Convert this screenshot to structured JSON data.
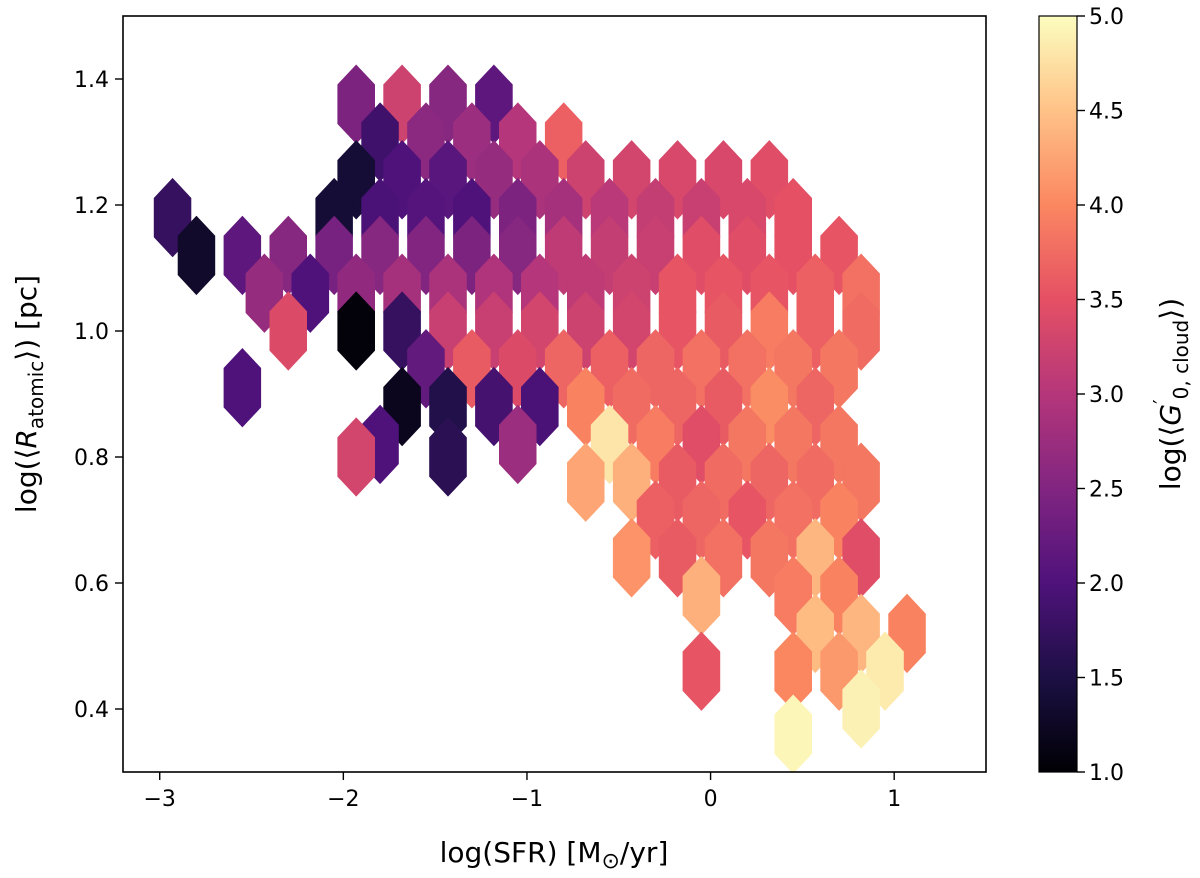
{
  "chart_data": {
    "type": "heatmap",
    "subtype": "hexbin",
    "xlabel": "log(SFR) [M⊙/yr]",
    "ylabel": "log(⟨R_atomic⟩) [pc]",
    "colorbar_label": "log(⟨G′_0,cloud⟩)",
    "xlim": [
      -3.2,
      1.5
    ],
    "ylim": [
      0.3,
      1.5
    ],
    "clim": [
      1.0,
      5.0
    ],
    "colormap": "magma",
    "x_ticks": [
      -3,
      -2,
      -1,
      0,
      1
    ],
    "x_tick_labels": [
      "−3",
      "−2",
      "−1",
      "0",
      "1"
    ],
    "y_ticks": [
      0.4,
      0.6,
      0.8,
      1.0,
      1.2,
      1.4
    ],
    "y_tick_labels": [
      "0.4",
      "0.6",
      "0.8",
      "1.0",
      "1.2",
      "1.4"
    ],
    "c_ticks": [
      1.0,
      1.5,
      2.0,
      2.5,
      3.0,
      3.5,
      4.0,
      4.5,
      5.0
    ],
    "c_tick_labels": [
      "1.0",
      "1.5",
      "2.0",
      "2.5",
      "3.0",
      "3.5",
      "4.0",
      "4.5",
      "5.0"
    ],
    "hex_width_x": 0.2,
    "hex_height_y": 0.1,
    "cells": [
      {
        "x": -1.93,
        "y": 1.36,
        "v": 2.45
      },
      {
        "x": -1.68,
        "y": 1.36,
        "v": 3.25
      },
      {
        "x": -1.43,
        "y": 1.36,
        "v": 2.55
      },
      {
        "x": -1.18,
        "y": 1.36,
        "v": 2.15
      },
      {
        "x": -1.8,
        "y": 1.3,
        "v": 1.85
      },
      {
        "x": -1.55,
        "y": 1.3,
        "v": 2.6
      },
      {
        "x": -1.3,
        "y": 1.3,
        "v": 2.75
      },
      {
        "x": -1.05,
        "y": 1.3,
        "v": 3.0
      },
      {
        "x": -0.8,
        "y": 1.3,
        "v": 3.65
      },
      {
        "x": -1.93,
        "y": 1.24,
        "v": 1.4
      },
      {
        "x": -1.68,
        "y": 1.24,
        "v": 2.0
      },
      {
        "x": -1.43,
        "y": 1.24,
        "v": 2.1
      },
      {
        "x": -1.18,
        "y": 1.24,
        "v": 2.7
      },
      {
        "x": -0.93,
        "y": 1.24,
        "v": 2.9
      },
      {
        "x": -0.68,
        "y": 1.24,
        "v": 3.25
      },
      {
        "x": -0.43,
        "y": 1.24,
        "v": 3.3
      },
      {
        "x": -0.18,
        "y": 1.24,
        "v": 3.35
      },
      {
        "x": 0.07,
        "y": 1.24,
        "v": 3.35
      },
      {
        "x": 0.32,
        "y": 1.24,
        "v": 3.45
      },
      {
        "x": -2.93,
        "y": 1.18,
        "v": 1.75
      },
      {
        "x": -2.05,
        "y": 1.18,
        "v": 1.4
      },
      {
        "x": -1.8,
        "y": 1.18,
        "v": 1.95
      },
      {
        "x": -1.55,
        "y": 1.18,
        "v": 2.05
      },
      {
        "x": -1.3,
        "y": 1.18,
        "v": 2.0
      },
      {
        "x": -1.05,
        "y": 1.18,
        "v": 2.45
      },
      {
        "x": -0.8,
        "y": 1.18,
        "v": 2.85
      },
      {
        "x": -0.55,
        "y": 1.18,
        "v": 3.05
      },
      {
        "x": -0.3,
        "y": 1.18,
        "v": 3.15
      },
      {
        "x": -0.05,
        "y": 1.18,
        "v": 3.2
      },
      {
        "x": 0.2,
        "y": 1.18,
        "v": 3.35
      },
      {
        "x": 0.45,
        "y": 1.18,
        "v": 3.5
      },
      {
        "x": -2.8,
        "y": 1.12,
        "v": 1.3
      },
      {
        "x": -2.55,
        "y": 1.12,
        "v": 2.15
      },
      {
        "x": -2.3,
        "y": 1.12,
        "v": 2.55
      },
      {
        "x": -2.05,
        "y": 1.12,
        "v": 2.4
      },
      {
        "x": -1.8,
        "y": 1.12,
        "v": 2.55
      },
      {
        "x": -1.55,
        "y": 1.12,
        "v": 2.5
      },
      {
        "x": -1.3,
        "y": 1.12,
        "v": 2.45
      },
      {
        "x": -1.05,
        "y": 1.12,
        "v": 2.55
      },
      {
        "x": -0.8,
        "y": 1.12,
        "v": 3.1
      },
      {
        "x": -0.55,
        "y": 1.12,
        "v": 3.15
      },
      {
        "x": -0.3,
        "y": 1.12,
        "v": 3.2
      },
      {
        "x": -0.05,
        "y": 1.12,
        "v": 3.45
      },
      {
        "x": 0.2,
        "y": 1.12,
        "v": 3.45
      },
      {
        "x": 0.45,
        "y": 1.12,
        "v": 3.5
      },
      {
        "x": 0.7,
        "y": 1.12,
        "v": 3.55
      },
      {
        "x": -2.43,
        "y": 1.06,
        "v": 2.7
      },
      {
        "x": -2.18,
        "y": 1.06,
        "v": 2.0
      },
      {
        "x": -1.93,
        "y": 1.06,
        "v": 2.65
      },
      {
        "x": -1.68,
        "y": 1.06,
        "v": 2.85
      },
      {
        "x": -1.43,
        "y": 1.06,
        "v": 2.9
      },
      {
        "x": -1.18,
        "y": 1.06,
        "v": 2.95
      },
      {
        "x": -0.93,
        "y": 1.06,
        "v": 3.0
      },
      {
        "x": -0.68,
        "y": 1.06,
        "v": 3.1
      },
      {
        "x": -0.43,
        "y": 1.06,
        "v": 3.25
      },
      {
        "x": -0.18,
        "y": 1.06,
        "v": 3.55
      },
      {
        "x": 0.07,
        "y": 1.06,
        "v": 3.55
      },
      {
        "x": 0.32,
        "y": 1.06,
        "v": 3.55
      },
      {
        "x": 0.57,
        "y": 1.06,
        "v": 3.65
      },
      {
        "x": 0.82,
        "y": 1.06,
        "v": 3.8
      },
      {
        "x": -2.3,
        "y": 1.0,
        "v": 3.4
      },
      {
        "x": -1.93,
        "y": 1.0,
        "v": 1.05
      },
      {
        "x": -1.68,
        "y": 1.0,
        "v": 1.75
      },
      {
        "x": -1.43,
        "y": 1.0,
        "v": 3.2
      },
      {
        "x": -1.18,
        "y": 1.0,
        "v": 3.2
      },
      {
        "x": -0.93,
        "y": 1.0,
        "v": 3.3
      },
      {
        "x": -0.68,
        "y": 1.0,
        "v": 3.25
      },
      {
        "x": -0.43,
        "y": 1.0,
        "v": 3.3
      },
      {
        "x": -0.18,
        "y": 1.0,
        "v": 3.55
      },
      {
        "x": 0.07,
        "y": 1.0,
        "v": 3.6
      },
      {
        "x": 0.32,
        "y": 1.0,
        "v": 3.9
      },
      {
        "x": 0.57,
        "y": 1.0,
        "v": 3.65
      },
      {
        "x": 0.82,
        "y": 1.0,
        "v": 3.75
      },
      {
        "x": -1.55,
        "y": 0.94,
        "v": 2.2
      },
      {
        "x": -1.3,
        "y": 0.94,
        "v": 3.6
      },
      {
        "x": -1.05,
        "y": 0.94,
        "v": 3.4
      },
      {
        "x": -0.8,
        "y": 0.94,
        "v": 3.7
      },
      {
        "x": -0.55,
        "y": 0.94,
        "v": 3.65
      },
      {
        "x": -0.3,
        "y": 0.94,
        "v": 3.7
      },
      {
        "x": -0.05,
        "y": 0.94,
        "v": 3.8
      },
      {
        "x": 0.2,
        "y": 0.94,
        "v": 3.8
      },
      {
        "x": 0.45,
        "y": 0.94,
        "v": 3.85
      },
      {
        "x": 0.7,
        "y": 0.94,
        "v": 3.85
      },
      {
        "x": -2.55,
        "y": 0.91,
        "v": 2.0
      },
      {
        "x": -1.68,
        "y": 0.88,
        "v": 1.2
      },
      {
        "x": -1.43,
        "y": 0.88,
        "v": 1.55
      },
      {
        "x": -1.18,
        "y": 0.88,
        "v": 1.9
      },
      {
        "x": -0.93,
        "y": 0.88,
        "v": 1.95
      },
      {
        "x": -0.68,
        "y": 0.88,
        "v": 3.95
      },
      {
        "x": -0.43,
        "y": 0.88,
        "v": 3.75
      },
      {
        "x": -0.18,
        "y": 0.88,
        "v": 3.7
      },
      {
        "x": 0.07,
        "y": 0.88,
        "v": 3.6
      },
      {
        "x": 0.32,
        "y": 0.88,
        "v": 4.05
      },
      {
        "x": 0.57,
        "y": 0.88,
        "v": 3.7
      },
      {
        "x": -1.8,
        "y": 0.82,
        "v": 2.0
      },
      {
        "x": -1.05,
        "y": 0.82,
        "v": 2.75
      },
      {
        "x": -0.55,
        "y": 0.82,
        "v": 4.8
      },
      {
        "x": -0.3,
        "y": 0.82,
        "v": 3.9
      },
      {
        "x": -0.05,
        "y": 0.82,
        "v": 3.45
      },
      {
        "x": 0.2,
        "y": 0.82,
        "v": 3.85
      },
      {
        "x": 0.45,
        "y": 0.82,
        "v": 3.85
      },
      {
        "x": 0.7,
        "y": 0.82,
        "v": 3.85
      },
      {
        "x": -1.93,
        "y": 0.8,
        "v": 3.3
      },
      {
        "x": -1.43,
        "y": 0.8,
        "v": 1.65
      },
      {
        "x": -0.68,
        "y": 0.76,
        "v": 4.25
      },
      {
        "x": -0.43,
        "y": 0.76,
        "v": 4.35
      },
      {
        "x": -0.18,
        "y": 0.76,
        "v": 3.6
      },
      {
        "x": 0.07,
        "y": 0.76,
        "v": 3.75
      },
      {
        "x": 0.32,
        "y": 0.76,
        "v": 3.7
      },
      {
        "x": 0.57,
        "y": 0.76,
        "v": 3.75
      },
      {
        "x": 0.82,
        "y": 0.76,
        "v": 3.85
      },
      {
        "x": -0.3,
        "y": 0.7,
        "v": 3.65
      },
      {
        "x": -0.05,
        "y": 0.7,
        "v": 3.7
      },
      {
        "x": 0.2,
        "y": 0.7,
        "v": 3.55
      },
      {
        "x": 0.45,
        "y": 0.7,
        "v": 3.8
      },
      {
        "x": 0.7,
        "y": 0.7,
        "v": 3.95
      },
      {
        "x": -0.43,
        "y": 0.64,
        "v": 4.1
      },
      {
        "x": -0.18,
        "y": 0.64,
        "v": 3.6
      },
      {
        "x": 0.07,
        "y": 0.64,
        "v": 3.8
      },
      {
        "x": 0.32,
        "y": 0.64,
        "v": 3.85
      },
      {
        "x": 0.57,
        "y": 0.64,
        "v": 4.4
      },
      {
        "x": 0.82,
        "y": 0.64,
        "v": 3.45
      },
      {
        "x": 0.45,
        "y": 0.58,
        "v": 3.9
      },
      {
        "x": 0.7,
        "y": 0.58,
        "v": 3.95
      },
      {
        "x": -0.05,
        "y": 0.58,
        "v": 4.35
      },
      {
        "x": 0.57,
        "y": 0.52,
        "v": 4.45
      },
      {
        "x": 0.82,
        "y": 0.52,
        "v": 4.4
      },
      {
        "x": 1.07,
        "y": 0.52,
        "v": 3.95
      },
      {
        "x": 0.7,
        "y": 0.46,
        "v": 4.15
      },
      {
        "x": 0.95,
        "y": 0.46,
        "v": 4.85
      },
      {
        "x": -0.05,
        "y": 0.46,
        "v": 3.55
      },
      {
        "x": 0.45,
        "y": 0.46,
        "v": 4.0
      },
      {
        "x": 0.82,
        "y": 0.4,
        "v": 4.9
      },
      {
        "x": 0.45,
        "y": 0.36,
        "v": 4.95
      }
    ]
  }
}
